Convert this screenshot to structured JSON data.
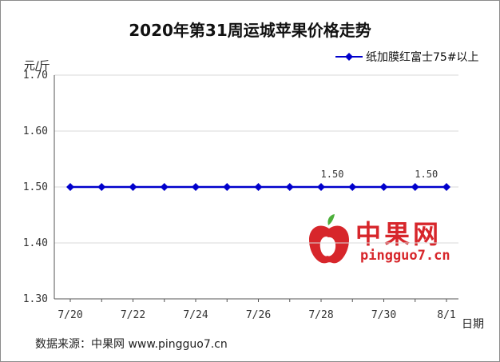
{
  "chart_data": {
    "type": "line",
    "title": "2020年第31周运城苹果价格走势",
    "xlabel": "日期",
    "ylabel": "元/斤",
    "ylim": [
      1.3,
      1.7
    ],
    "yticks": [
      "1.70",
      "1.60",
      "1.50",
      "1.40",
      "1.30"
    ],
    "ytick_values": [
      1.7,
      1.6,
      1.5,
      1.4,
      1.3
    ],
    "x": [
      "7/20",
      "7/21",
      "7/22",
      "7/23",
      "7/24",
      "7/25",
      "7/26",
      "7/27",
      "7/28",
      "7/29",
      "7/30",
      "7/31",
      "8/1"
    ],
    "xtick_labels": [
      "7/20",
      "",
      "7/22",
      "",
      "7/24",
      "",
      "7/26",
      "",
      "7/28",
      "",
      "7/30",
      "",
      "8/1"
    ],
    "series": [
      {
        "name": "纸加膜红富士75#以上",
        "color": "#0000cc",
        "values": [
          1.5,
          1.5,
          1.5,
          1.5,
          1.5,
          1.5,
          1.5,
          1.5,
          1.5,
          1.5,
          1.5,
          1.5,
          1.5
        ]
      }
    ],
    "data_labels": [
      {
        "index": 8,
        "text": "1.50"
      },
      {
        "index": 11,
        "text": "1.50"
      }
    ],
    "grid": true,
    "legend_position": "top-right"
  },
  "footer_text": "数据来源：中果网 www.pingguo7.cn",
  "watermark": {
    "cn": "中果网",
    "en": "pingguo7.cn"
  },
  "colors": {
    "line": "#0000cc",
    "grid": "#d9d9d9",
    "watermark": "#d7262b"
  }
}
